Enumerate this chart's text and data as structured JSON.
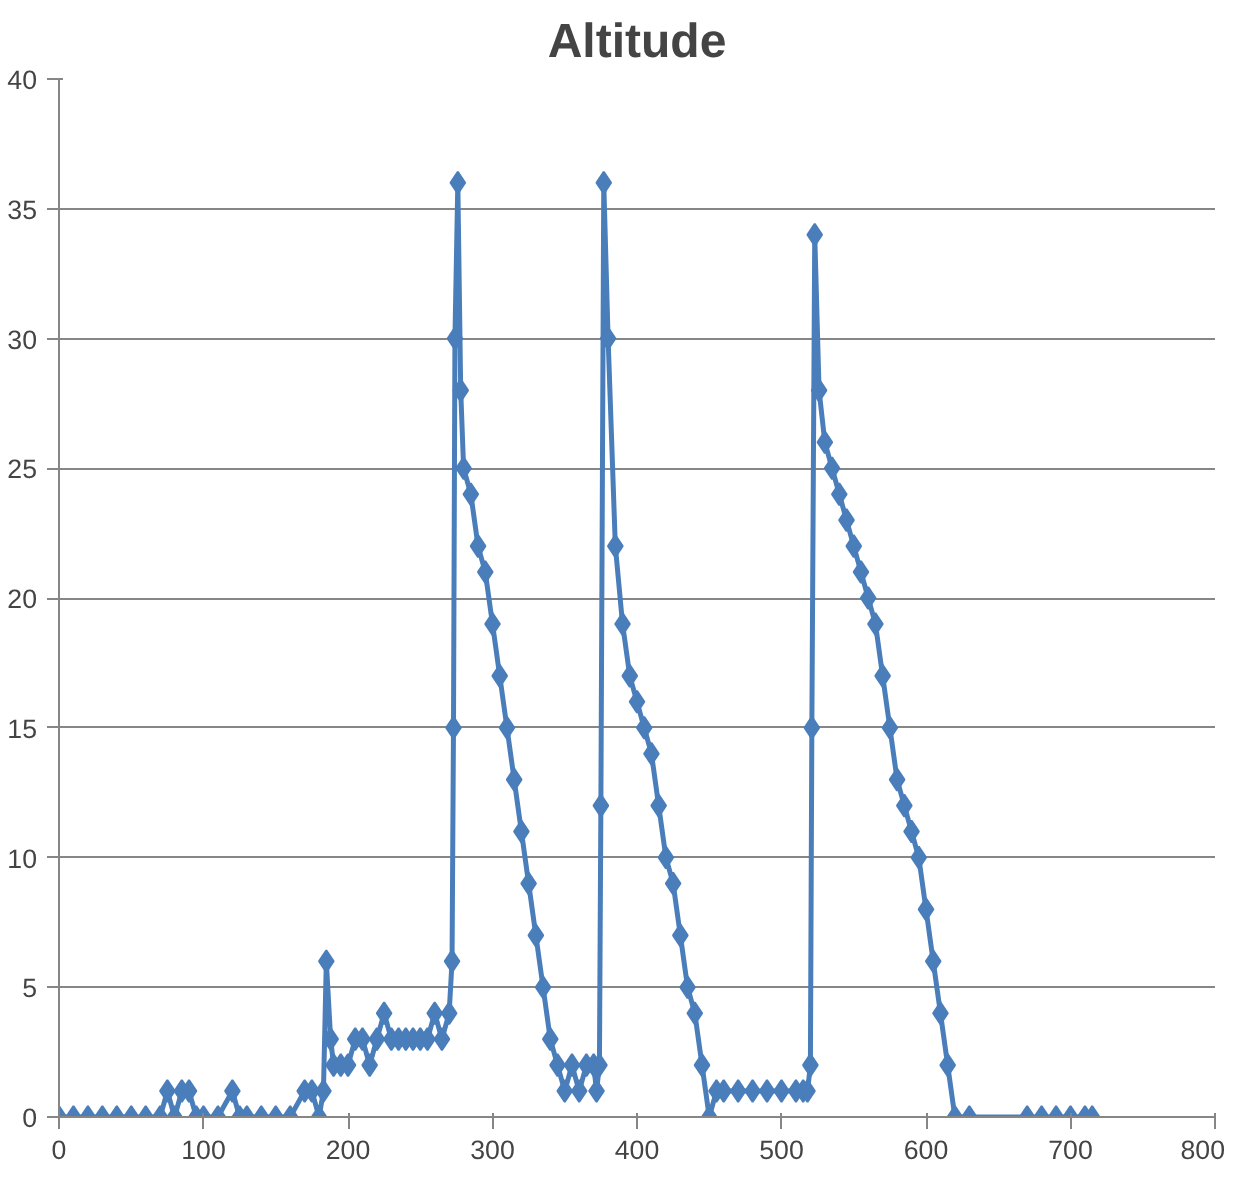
{
  "chart_data": {
    "type": "line",
    "title": "Altitude",
    "marker": "diamond",
    "grid": "y",
    "xlim": [
      0,
      800
    ],
    "xticks": [
      0,
      100,
      200,
      300,
      400,
      500,
      600,
      700,
      800
    ],
    "ylim": [
      0,
      40
    ],
    "yticks": [
      0,
      5,
      10,
      15,
      20,
      25,
      30,
      35,
      40
    ],
    "series": [
      {
        "color": "#4a7ebb",
        "x": [
          0,
          10,
          20,
          30,
          40,
          50,
          60,
          70,
          75,
          80,
          85,
          90,
          95,
          100,
          110,
          120,
          125,
          130,
          140,
          150,
          160,
          170,
          175,
          180,
          183,
          185,
          188,
          190,
          195,
          200,
          205,
          210,
          215,
          220,
          225,
          230,
          235,
          240,
          245,
          250,
          255,
          260,
          265,
          270,
          272,
          273,
          274,
          276,
          278,
          280,
          285,
          290,
          295,
          300,
          305,
          310,
          315,
          320,
          325,
          330,
          335,
          340,
          345,
          350,
          355,
          360,
          365,
          370,
          372,
          374,
          375,
          377,
          380,
          385,
          390,
          395,
          400,
          405,
          410,
          415,
          420,
          425,
          430,
          435,
          440,
          445,
          450,
          455,
          460,
          470,
          480,
          490,
          500,
          510,
          515,
          518,
          520,
          521,
          523,
          526,
          530,
          535,
          540,
          545,
          550,
          555,
          560,
          565,
          570,
          575,
          580,
          585,
          590,
          595,
          600,
          605,
          610,
          615,
          620,
          630,
          670,
          680,
          690,
          700,
          710,
          715
        ],
        "values": [
          0,
          0,
          0,
          0,
          0,
          0,
          0,
          0,
          1,
          0,
          1,
          1,
          0,
          0,
          0,
          1,
          0,
          0,
          0,
          0,
          0,
          1,
          1,
          0,
          1,
          6,
          3,
          2,
          2,
          2,
          3,
          3,
          2,
          3,
          4,
          3,
          3,
          3,
          3,
          3,
          3,
          4,
          3,
          4,
          6,
          15,
          30,
          36,
          28,
          25,
          24,
          22,
          21,
          19,
          17,
          15,
          13,
          11,
          9,
          7,
          5,
          3,
          2,
          1,
          2,
          1,
          2,
          2,
          1,
          2,
          12,
          36,
          30,
          22,
          19,
          17,
          16,
          15,
          14,
          12,
          10,
          9,
          7,
          5,
          4,
          2,
          0,
          1,
          1,
          1,
          1,
          1,
          1,
          1,
          1,
          1,
          2,
          15,
          34,
          28,
          26,
          25,
          24,
          23,
          22,
          21,
          20,
          19,
          17,
          15,
          13,
          12,
          11,
          10,
          8,
          6,
          4,
          2,
          0,
          0,
          0,
          0,
          0,
          0,
          0,
          0
        ]
      }
    ]
  }
}
